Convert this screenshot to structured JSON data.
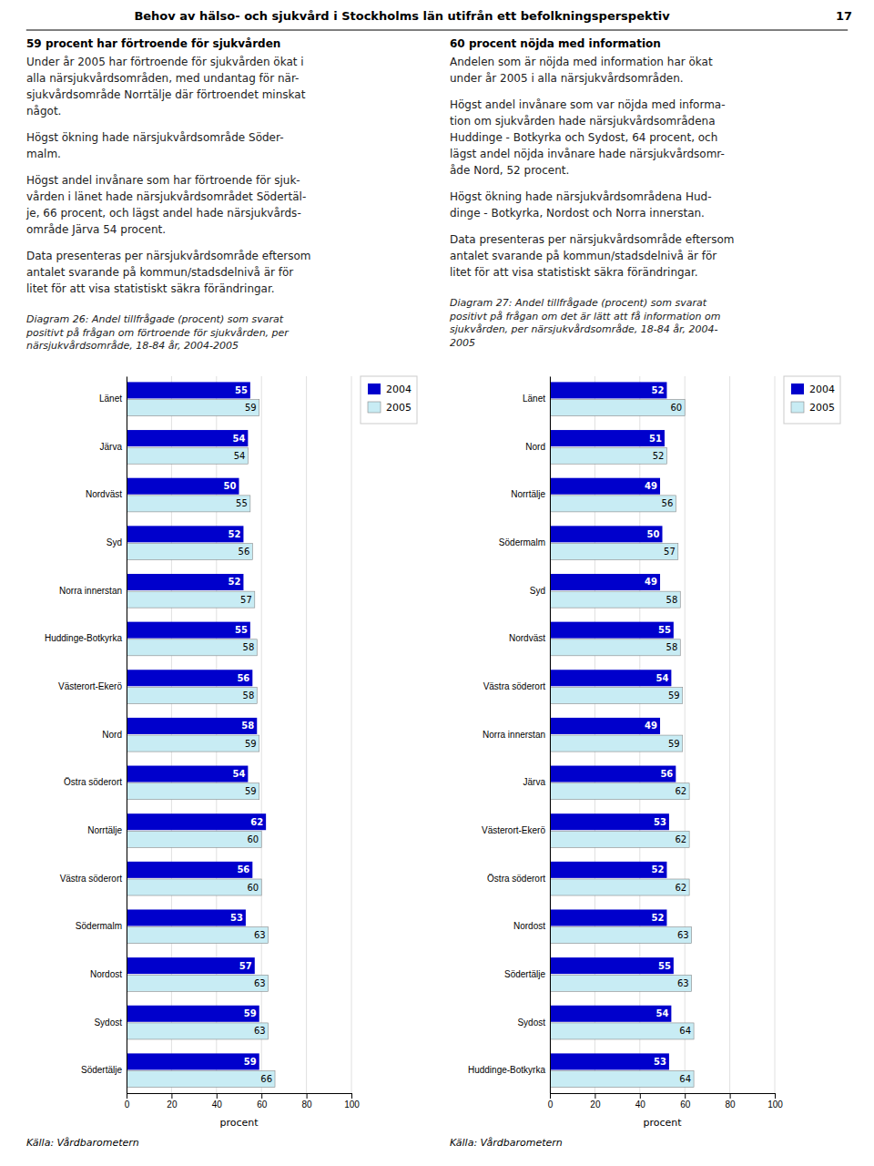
{
  "page_title": "Behov av hälso- och sjukvård i Stockholms län utifrån ett befolkningsperspektiv",
  "page_number": "17",
  "source_text": "Källa: Vårdbarometern",
  "sections": [
    {
      "title": "59 procent har förtroende för sjukvården",
      "paragraphs": [
        "Under år 2005 har förtroende för sjukvården ökat i\nalla närsjukvårdsområden, med undantag för när-\nsjukvårdsområde Norrtälje där förtroendet minskat\nnågot.",
        "Högst ökning hade närsjukvårdsområde Söder-\nmalm.",
        "Högst andel invånare som har förtroende för sjuk-\nvården i länet hade närsjukvårdsområdet Södertäl-\nje, 66 procent, och lägst andel hade närsjukvårds-\nområde Järva 54 procent.",
        "Data presenteras per närsjukvårdsområde eftersom\nantalet svarande på kommun/stadsdelnivå är för\nlitet för att visa statistiskt säkra förändringar."
      ]
    },
    {
      "title": "60 procent nöjda med information",
      "paragraphs": [
        "Andelen som är nöjda med information har ökat\nunder år 2005 i alla närsjukvårdsområden.",
        "Högst andel invånare som var nöjda med informa-\ntion om sjukvården hade närsjukvårdsområdena\nHuddinge - Botkyrka och Sydost, 64 procent, och\nlägst andel nöjda invånare hade närsjukvårdsomr-\nåde Nord, 52 procent.",
        "Högst ökning hade närsjukvårdsområdena Hud-\ndinge - Botkyrka, Nordost och Norra innerstan.",
        "Data presenteras per närsjukvårdsområde eftersom\nantalet svarande på kommun/stadsdelnivå är för\nlitet för att visa statistiskt säkra förändringar."
      ]
    }
  ],
  "chart_data": [
    {
      "type": "bar",
      "orientation": "horizontal",
      "title": "Diagram 26: Andel tillfrågade (procent) som svarat\npositivt på frågan om förtroende för sjukvården, per\nnärsjukvårdsområde, 18-84 år, 2004-2005",
      "categories": [
        "Länet",
        "Järva",
        "Nordväst",
        "Syd",
        "Norra innerstan",
        "Huddinge-Botkyrka",
        "Västerort-Ekerö",
        "Nord",
        "Östra söderort",
        "Norrtälje",
        "Västra söderort",
        "Södermalm",
        "Nordost",
        "Sydost",
        "Södertälje"
      ],
      "series": [
        {
          "name": "2004",
          "color": "#0000cc",
          "values": [
            55,
            54,
            50,
            52,
            52,
            55,
            56,
            58,
            54,
            62,
            56,
            53,
            57,
            59,
            59
          ]
        },
        {
          "name": "2005",
          "color": "#c8ecf4",
          "values": [
            59,
            54,
            55,
            56,
            57,
            58,
            58,
            59,
            59,
            60,
            60,
            63,
            63,
            63,
            66
          ]
        }
      ],
      "xlabel": "procent",
      "xlim": [
        0,
        100
      ],
      "xticks": [
        0,
        20,
        40,
        60,
        80,
        100
      ],
      "grid": true,
      "data_labels": true,
      "legend": "right"
    },
    {
      "type": "bar",
      "orientation": "horizontal",
      "title": "Diagram 27: Andel tillfrågade (procent) som svarat\npositivt på frågan om det är lätt att få information om\nsjukvården, per närsjukvårdsområde, 18-84 år, 2004-\n2005",
      "categories": [
        "Länet",
        "Nord",
        "Norrtälje",
        "Södermalm",
        "Syd",
        "Nordväst",
        "Västra söderort",
        "Norra innerstan",
        "Järva",
        "Västerort-Ekerö",
        "Östra söderort",
        "Nordost",
        "Södertälje",
        "Sydost",
        "Huddinge-Botkyrka"
      ],
      "series": [
        {
          "name": "2004",
          "color": "#0000cc",
          "values": [
            52,
            51,
            49,
            50,
            49,
            55,
            54,
            49,
            56,
            53,
            52,
            52,
            55,
            54,
            53
          ]
        },
        {
          "name": "2005",
          "color": "#c8ecf4",
          "values": [
            60,
            52,
            56,
            57,
            58,
            58,
            59,
            59,
            62,
            62,
            62,
            63,
            63,
            64,
            64
          ]
        }
      ],
      "xlabel": "procent",
      "xlim": [
        0,
        100
      ],
      "xticks": [
        0,
        20,
        40,
        60,
        80,
        100
      ],
      "grid": true,
      "data_labels": true,
      "legend": "right"
    }
  ]
}
